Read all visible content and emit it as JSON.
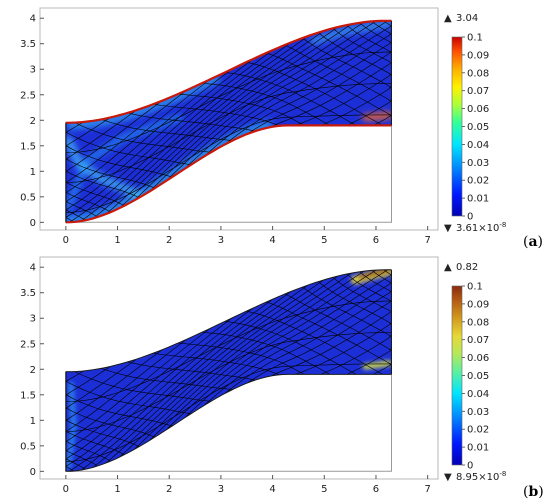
{
  "chart_data": [
    {
      "type": "heatmap",
      "panel_label_open": "(",
      "panel_letter": "a",
      "panel_label_close": ")",
      "xlim": [
        -0.5,
        7.2
      ],
      "ylim": [
        -0.15,
        4.2
      ],
      "x_ticks": [
        "0",
        "1",
        "2",
        "3",
        "4",
        "5",
        "6",
        "7"
      ],
      "y_ticks": [
        "0",
        "0.5",
        "1",
        "1.5",
        "2",
        "2.5",
        "3",
        "3.5",
        "4"
      ],
      "colorbar": {
        "ticks": [
          "0.1",
          "0.09",
          "0.08",
          "0.07",
          "0.06",
          "0.05",
          "0.04",
          "0.03",
          "0.02",
          "0.01",
          "0"
        ],
        "range": [
          0,
          0.1
        ]
      },
      "max_marker": "▲",
      "max_label": "3.04",
      "min_marker": "▼",
      "min_label_base": "3.61×10",
      "min_label_exp": "-8",
      "colors": {
        "background": "#1c2fd6",
        "hot": "#d41c0c",
        "warm": "#29e3d8"
      }
    },
    {
      "type": "heatmap",
      "panel_label_open": "(",
      "panel_letter": "b",
      "panel_label_close": ")",
      "xlim": [
        -0.5,
        7.2
      ],
      "ylim": [
        -0.15,
        4.2
      ],
      "x_ticks": [
        "0",
        "1",
        "2",
        "3",
        "4",
        "5",
        "6",
        "7"
      ],
      "y_ticks": [
        "0",
        "0.5",
        "1",
        "1.5",
        "2",
        "2.5",
        "3",
        "3.5",
        "4"
      ],
      "colorbar": {
        "ticks": [
          "0.1",
          "0.09",
          "0.08",
          "0.07",
          "0.06",
          "0.05",
          "0.04",
          "0.03",
          "0.02",
          "0.01",
          "0"
        ],
        "range": [
          0,
          0.1
        ]
      },
      "max_marker": "▲",
      "max_label": "0.82",
      "min_marker": "▼",
      "min_label_base": "8.95×10",
      "min_label_exp": "-8",
      "colors": {
        "background": "#1c2fd6",
        "hot": "#7a2a10",
        "warm": "#d9e83a"
      }
    }
  ]
}
